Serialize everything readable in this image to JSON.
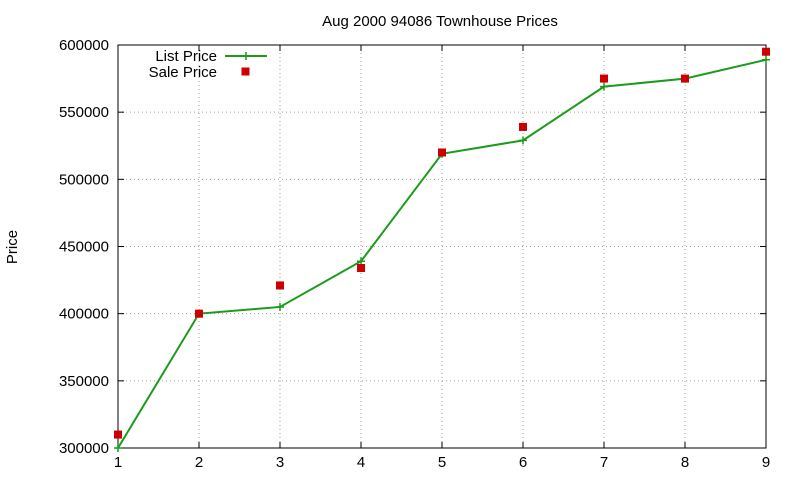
{
  "chart_data": {
    "type": "line",
    "title": "Aug 2000 94086 Townhouse Prices",
    "xlabel": "",
    "ylabel": "Price",
    "x": [
      1,
      2,
      3,
      4,
      5,
      6,
      7,
      8,
      9
    ],
    "xlim": [
      1,
      9
    ],
    "ylim": [
      300000,
      600000
    ],
    "xticks": [
      "1",
      "2",
      "3",
      "4",
      "5",
      "6",
      "7",
      "8",
      "9"
    ],
    "yticks": [
      "300000",
      "350000",
      "400000",
      "450000",
      "500000",
      "550000",
      "600000"
    ],
    "ytick_values": [
      300000,
      350000,
      400000,
      450000,
      500000,
      550000,
      600000
    ],
    "grid": true,
    "legend_position": "top-left",
    "series": [
      {
        "name": "List Price",
        "style": "line+plus",
        "color": "#1a9c1a",
        "values": [
          300000,
          400000,
          405000,
          439000,
          519000,
          529000,
          569000,
          575000,
          589000
        ]
      },
      {
        "name": "Sale Price",
        "style": "square",
        "color": "#cc0000",
        "values": [
          310000,
          400000,
          421000,
          434000,
          520000,
          539000,
          575000,
          575000,
          595000
        ]
      }
    ]
  }
}
